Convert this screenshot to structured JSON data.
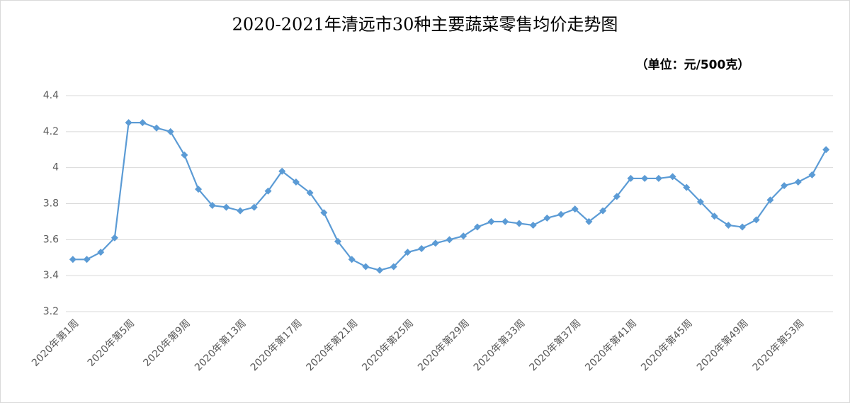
{
  "chart_data": {
    "type": "line",
    "title": "2020-2021年清远市30种主要蔬菜零售均价走势图",
    "subtitle": "（单位：元/500克）",
    "categories": [
      "2020年第1周",
      null,
      null,
      null,
      "2020年第5周",
      null,
      null,
      null,
      "2020年第9周",
      null,
      null,
      null,
      "2020年第13周",
      null,
      null,
      null,
      "2020年第17周",
      null,
      null,
      null,
      "2020年第21周",
      null,
      null,
      null,
      "2020年第25周",
      null,
      null,
      null,
      "2020年第29周",
      null,
      null,
      null,
      "2020年第33周",
      null,
      null,
      null,
      "2020年第37周",
      null,
      null,
      null,
      "2020年第41周",
      null,
      null,
      null,
      "2020年第45周",
      null,
      null,
      null,
      "2020年第49周",
      null,
      null,
      null,
      "2020年第53周",
      null,
      null
    ],
    "values": [
      3.49,
      3.49,
      3.53,
      3.61,
      4.25,
      4.25,
      4.22,
      4.2,
      4.07,
      3.88,
      3.79,
      3.78,
      3.76,
      3.78,
      3.87,
      3.98,
      3.92,
      3.86,
      3.75,
      3.59,
      3.49,
      3.45,
      3.43,
      3.45,
      3.53,
      3.55,
      3.58,
      3.6,
      3.62,
      3.67,
      3.7,
      3.7,
      3.69,
      3.68,
      3.72,
      3.74,
      3.77,
      3.7,
      3.76,
      3.84,
      3.94,
      3.94,
      3.94,
      3.95,
      3.89,
      3.81,
      3.73,
      3.68,
      3.67,
      3.71,
      3.82,
      3.9,
      3.92,
      3.96,
      4.1
    ],
    "color": "#5b9bd5",
    "ylim": [
      3.2,
      4.4
    ],
    "yticks": [
      3.2,
      3.4,
      3.6,
      3.8,
      4,
      4.2,
      4.4
    ],
    "grid": true
  }
}
